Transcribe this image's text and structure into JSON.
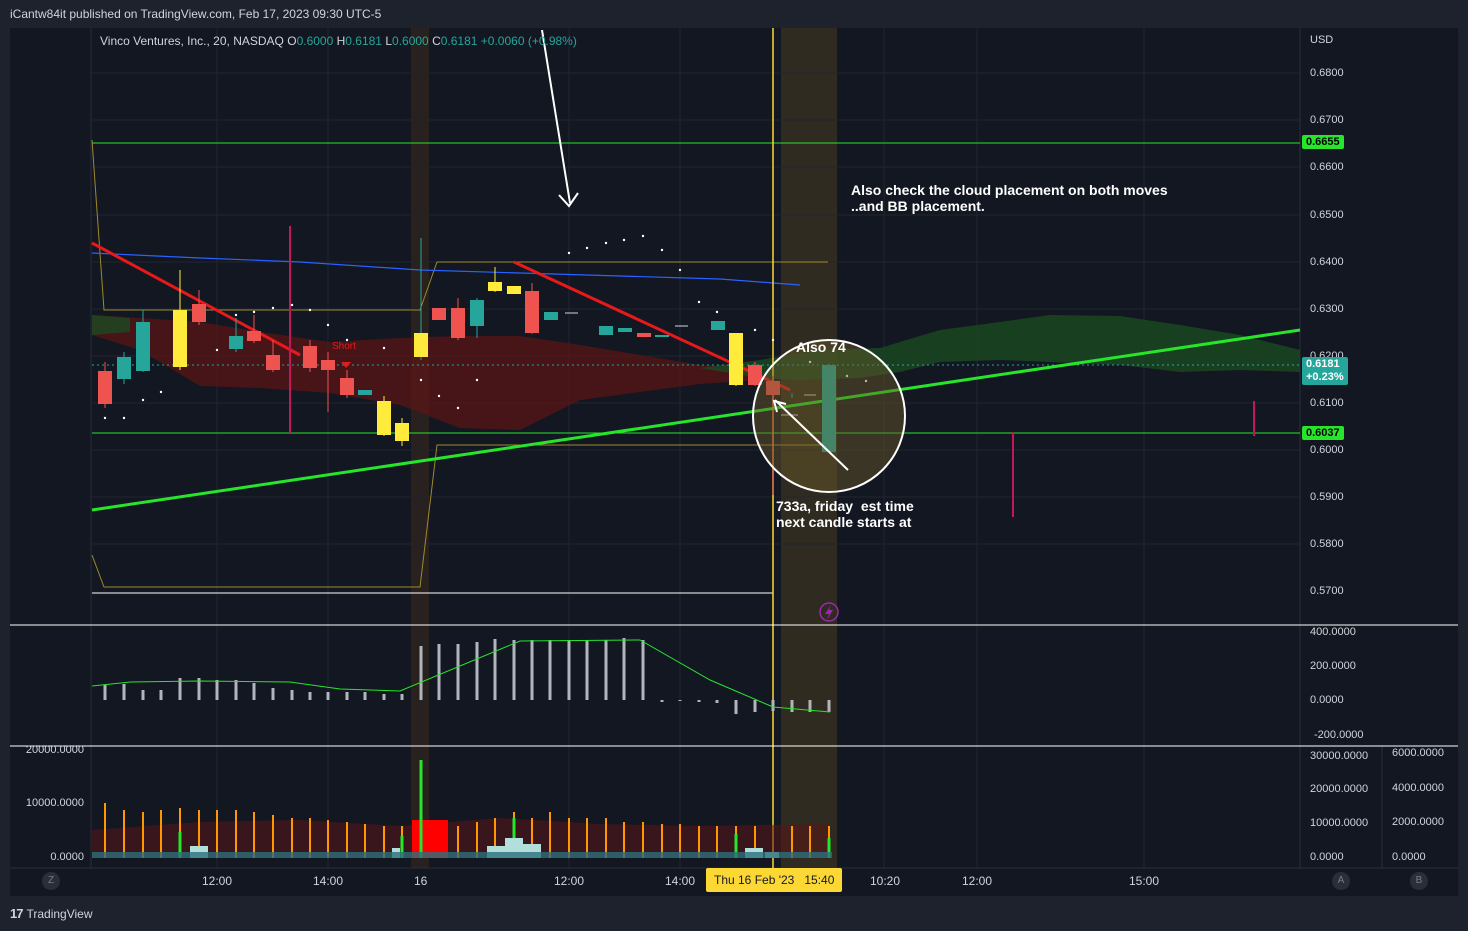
{
  "header": {
    "published_by": "iCantw84it published on TradingView.com, Feb 17, 2023 09:30 UTC-5"
  },
  "legend": {
    "symbol": "Vinco Ventures, Inc., 20, NASDAQ",
    "open_key": "O",
    "open": "0.6000",
    "high_key": "H",
    "high": "0.6181",
    "low_key": "L",
    "low": "0.6000",
    "close_key": "C",
    "close": "0.6181",
    "change": "+0.0060 (+0.98%)"
  },
  "price_axis": {
    "currency": "USD",
    "ticks": [
      "0.6800",
      "0.6700",
      "0.6600",
      "0.6500",
      "0.6400",
      "0.6300",
      "0.6200",
      "0.6100",
      "0.6000",
      "0.5900",
      "0.5800",
      "0.5700"
    ],
    "tag_green_top": "0.6655",
    "tag_current": "0.6181",
    "tag_current_change": "+0.23%",
    "tag_green_bottom": "0.6037"
  },
  "oscillator_axis": {
    "ticks": [
      "400.0000",
      "200.0000",
      "0.0000",
      "-200.0000"
    ]
  },
  "volume_axis": {
    "left_ticks": [
      "20000.0000",
      "10000.0000",
      "0.0000"
    ],
    "right_ticks": [
      "30000.0000",
      "20000.0000",
      "10000.0000",
      "0.0000"
    ],
    "far_right_ticks": [
      "6000.0000",
      "4000.0000",
      "2000.0000",
      "0.0000"
    ]
  },
  "time_axis": {
    "labels": [
      "12:00",
      "14:00",
      "16",
      "12:00",
      "14:00",
      "10:20",
      "12:00",
      "15:00"
    ],
    "crosshair_label": "Thu 16 Feb '23   15:40",
    "left_button": "Z",
    "right_button_a": "A",
    "right_button_b": "B"
  },
  "annotations": {
    "cloud_note_line1": "Also check the cloud placement on both moves",
    "cloud_note_line2": "..and BB placement.",
    "also_74": "Also 74",
    "time_note_line1": "733a, friday  est time",
    "time_note_line2": "next candle starts at",
    "short_label": "Short"
  },
  "footer": {
    "brand": "TradingView",
    "logo_glyph": "17"
  },
  "colors": {
    "background": "#131722",
    "bull": "#26a69a",
    "bear": "#ef5350",
    "highlight_candle": "#ffeb3b",
    "trendline_green": "#26e52b",
    "trendline_red": "#e8191b",
    "crosshair": "#fdd835",
    "cloud_red": "#6b1a1a",
    "cloud_green": "#1b4a22",
    "ma_blue": "#2962ff"
  }
}
